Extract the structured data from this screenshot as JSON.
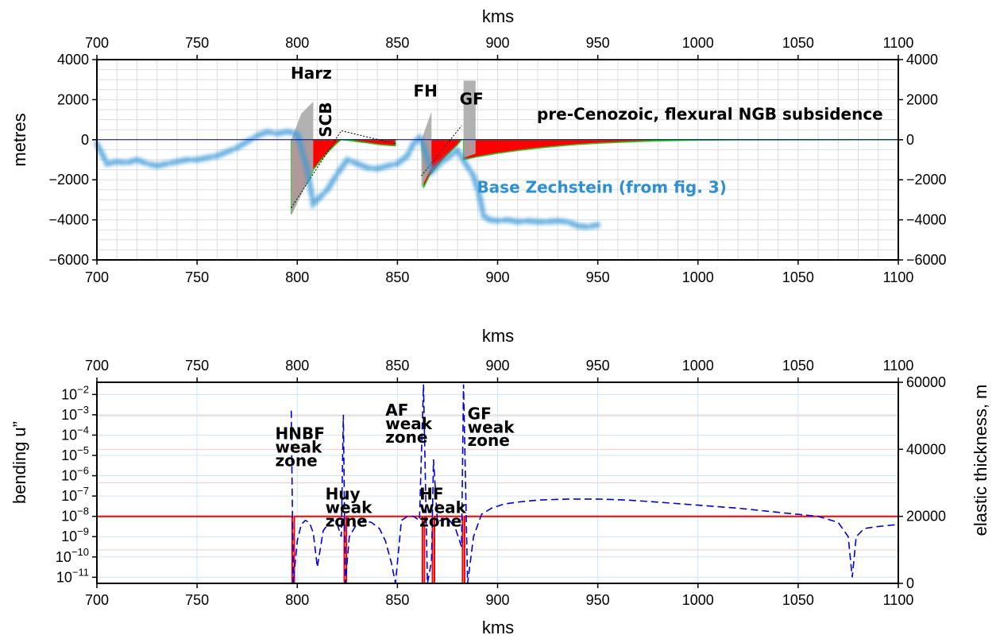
{
  "chart_data": [
    {
      "type": "line",
      "title": "",
      "xlabel_top": "kms",
      "ylabel": "metres",
      "xlim": [
        700,
        1100
      ],
      "ylim": [
        -6000,
        4000
      ],
      "x_ticks": [
        700,
        750,
        800,
        850,
        900,
        950,
        1000,
        1050,
        1100
      ],
      "y_ticks": [
        4000,
        2000,
        0,
        -2000,
        -4000,
        -6000
      ],
      "y_tick_labels": [
        "4000",
        "2000",
        "0",
        "−2000",
        "−4000",
        "−6000"
      ],
      "grid": true,
      "colors": {
        "subsidence_fill": "#ff0000",
        "model_line": "#22cc22",
        "base_zechstein": "#3a9ad9",
        "sealevel": "#0000aa",
        "block_fill": "#aaaaaa"
      },
      "annotations": [
        {
          "text": "Harz",
          "x": 807,
          "y": 3050
        },
        {
          "text": "SCB",
          "x": 817,
          "y": 1000,
          "rotated": true
        },
        {
          "text": "FH",
          "x": 864,
          "y": 2150
        },
        {
          "text": "GF",
          "x": 887,
          "y": 1750
        },
        {
          "text": "pre-Cenozoic, flexural NGB subsidence",
          "x": 1006,
          "y": 1000
        },
        {
          "text": "Base Zechstein (from fig. 3)",
          "x": 952,
          "y": -2650
        }
      ],
      "series": [
        {
          "name": "Base Zechstein (from fig. 3)",
          "x": [
            700,
            705,
            710,
            715,
            720,
            725,
            730,
            735,
            740,
            745,
            750,
            755,
            760,
            765,
            770,
            775,
            780,
            785,
            790,
            795,
            800,
            805,
            808,
            812,
            815,
            820,
            825,
            830,
            835,
            840,
            845,
            850,
            855,
            858,
            861,
            863,
            867,
            870,
            875,
            880,
            884,
            888,
            891,
            893,
            896,
            900,
            905,
            910,
            915,
            920,
            925,
            930,
            935,
            940,
            945,
            950
          ],
          "y": [
            -200,
            -1200,
            -1100,
            -1150,
            -1000,
            -1200,
            -1300,
            -1200,
            -1100,
            -1000,
            -1000,
            -900,
            -800,
            -600,
            -400,
            -100,
            200,
            400,
            300,
            400,
            300,
            -1500,
            -3200,
            -2800,
            -2500,
            -1700,
            -1000,
            -1200,
            -1400,
            -1450,
            -1300,
            -1200,
            -800,
            -200,
            100,
            -300,
            -1600,
            -1300,
            -900,
            -500,
            -1200,
            -1800,
            -2800,
            -3800,
            -4000,
            -4050,
            -4000,
            -4100,
            -4050,
            -4100,
            -4100,
            -4050,
            -4100,
            -4300,
            -4350,
            -4250
          ]
        },
        {
          "name": "",
          "fill": "red",
          "x": [
            797,
            797,
            800,
            806,
            808,
            812,
            816,
            820,
            822
          ],
          "y": [
            0,
            -3700,
            -2900,
            -2000,
            -1500,
            -1000,
            -550,
            -150,
            0
          ]
        },
        {
          "name": "",
          "fill": "red",
          "x": [
            822,
            826,
            830,
            835,
            840,
            845,
            849,
            849
          ],
          "y": [
            0,
            -40,
            -100,
            -160,
            -230,
            -280,
            -300,
            0
          ]
        },
        {
          "name": "",
          "fill": "red",
          "x": [
            862,
            863,
            866,
            870,
            874,
            877,
            880,
            882
          ],
          "y": [
            0,
            -2400,
            -1800,
            -1300,
            -850,
            -550,
            -250,
            0
          ]
        },
        {
          "name": "",
          "fill": "red",
          "x": [
            883,
            883,
            890,
            900,
            910,
            920,
            930,
            940,
            950,
            960,
            970,
            980,
            990,
            1000,
            1020,
            1050,
            1080,
            1100
          ],
          "y": [
            0,
            -1000,
            -850,
            -680,
            -540,
            -420,
            -320,
            -240,
            -180,
            -130,
            -90,
            -60,
            -40,
            -20,
            -8,
            -3,
            -1,
            0
          ]
        }
      ]
    },
    {
      "type": "line",
      "title": "",
      "xlabel_top": "kms",
      "xlabel": "kms",
      "ylabel_left": "bending u”",
      "ylabel_right": "elastic thickness, m",
      "xlim": [
        700,
        1100
      ],
      "ylim_left_log10": [
        -11.3,
        -1.4
      ],
      "ylim_right": [
        0,
        60000
      ],
      "y_scale_left": "log",
      "x_ticks": [
        700,
        750,
        800,
        850,
        900,
        950,
        1000,
        1050,
        1100
      ],
      "y_left_ticks_exp": [
        "−2",
        "−3",
        "−4",
        "−5",
        "−6",
        "−7",
        "−8",
        "−9",
        "−10",
        "−11"
      ],
      "y_right_ticks": [
        0,
        20000,
        40000,
        60000
      ],
      "grid": true,
      "colors": {
        "bending": "#0000dd",
        "elastic": "#ff0000"
      },
      "annotations": [
        {
          "text": "HNBF",
          "x": 789,
          "y_right": 43000
        },
        {
          "text": "weak",
          "x": 789,
          "y_right": 39000
        },
        {
          "text": "zone",
          "x": 789,
          "y_right": 35000
        },
        {
          "text": "Huy",
          "x": 814,
          "y_right": 25000
        },
        {
          "text": "weak",
          "x": 814,
          "y_right": 21000
        },
        {
          "text": "zone",
          "x": 814,
          "y_right": 17000
        },
        {
          "text": "AF",
          "x": 844,
          "y_right": 50000
        },
        {
          "text": "weak",
          "x": 844,
          "y_right": 46000
        },
        {
          "text": "zone",
          "x": 844,
          "y_right": 42000
        },
        {
          "text": "HF",
          "x": 861,
          "y_right": 25000
        },
        {
          "text": "weak",
          "x": 861,
          "y_right": 21000
        },
        {
          "text": "zone",
          "x": 861,
          "y_right": 17000
        },
        {
          "text": "GF",
          "x": 885,
          "y_right": 49000
        },
        {
          "text": "weak",
          "x": 885,
          "y_right": 45000
        },
        {
          "text": "zone",
          "x": 885,
          "y_right": 41000
        }
      ],
      "series": [
        {
          "name": "",
          "axis": "right",
          "x": [
            700,
            797.5,
            797.5,
            798.5,
            798.5,
            823.5,
            823.5,
            824.5,
            824.5,
            862.5,
            862.5,
            863.5,
            863.5,
            867.5,
            867.5,
            868.5,
            868.5,
            882.5,
            882.5,
            883.5,
            883.5,
            1100
          ],
          "y": [
            20000,
            20000,
            0,
            0,
            20000,
            20000,
            0,
            0,
            20000,
            20000,
            0,
            0,
            20000,
            20000,
            0,
            0,
            20000,
            20000,
            0,
            0,
            20000,
            20000
          ]
        },
        {
          "name": "",
          "axis": "left",
          "x": [
            797,
            798,
            800,
            802,
            804,
            806,
            808,
            810,
            813,
            816,
            818,
            820,
            822,
            823,
            824,
            826,
            829,
            833,
            837,
            841,
            844,
            847,
            849,
            852,
            855,
            858,
            861,
            863,
            865,
            867,
            868,
            870,
            873,
            876,
            879,
            882,
            883,
            885,
            888,
            892,
            897,
            903,
            910,
            920,
            935,
            950,
            965,
            980,
            1000,
            1020,
            1040,
            1060,
            1070,
            1075,
            1077,
            1079,
            1083,
            1090,
            1100
          ],
          "y": [
            -2.8,
            -11.5,
            -9.2,
            -8.4,
            -8.2,
            -8.3,
            -8.8,
            -10.5,
            -8.7,
            -8.3,
            -8.2,
            -8.4,
            -9.0,
            -3.0,
            -11.5,
            -9.0,
            -8.5,
            -8.2,
            -8.3,
            -8.6,
            -9.2,
            -10.3,
            -11.5,
            -8.2,
            -8.0,
            -8.0,
            -8.2,
            -1.5,
            -11.5,
            -10.2,
            -5.2,
            -8.3,
            -8.1,
            -8.2,
            -8.6,
            -9.5,
            -1.5,
            -11.5,
            -9.0,
            -7.9,
            -7.6,
            -7.4,
            -7.3,
            -7.2,
            -7.15,
            -7.15,
            -7.2,
            -7.3,
            -7.45,
            -7.6,
            -7.8,
            -8.0,
            -8.3,
            -9.0,
            -11.0,
            -9.0,
            -8.6,
            -8.5,
            -8.4
          ]
        }
      ]
    }
  ]
}
